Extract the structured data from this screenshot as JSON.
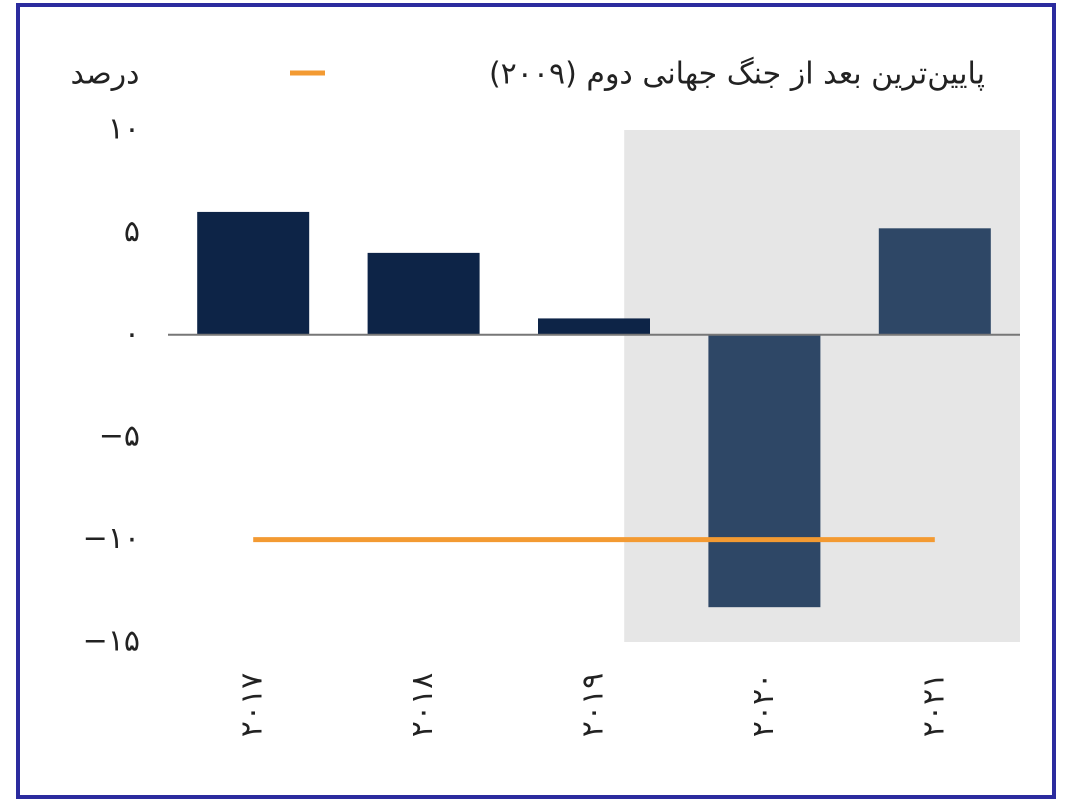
{
  "chart_data": {
    "type": "bar",
    "y_axis_label": "درصد",
    "categories": [
      "۲۰۱۷",
      "۲۰۱۸",
      "۲۰۱۹",
      "۲۰۲۰",
      "۲۰۲۱"
    ],
    "values": [
      6,
      4,
      0.8,
      -13.3,
      5.2
    ],
    "colors": [
      "#0d2447",
      "#0d2447",
      "#0d2447",
      "#2e4766",
      "#2e4766"
    ],
    "shaded_categories": [
      "۲۰۲۰",
      "۲۰۲۱"
    ],
    "shade_color": "#e6e6e6",
    "reference_line": {
      "name": "پایین‌ترین بعد از جنگ جهانی دوم (۲۰۰۹)",
      "value": -10,
      "color": "#f39a32"
    },
    "ylim": [
      -15,
      10
    ],
    "yticks": [
      {
        "value": -15,
        "label": "−۱۵"
      },
      {
        "value": -10,
        "label": "−۱۰"
      },
      {
        "value": -5,
        "label": "−۵"
      },
      {
        "value": 0,
        "label": "۰"
      },
      {
        "value": 5,
        "label": "۵"
      },
      {
        "value": 10,
        "label": "۱۰"
      }
    ]
  }
}
